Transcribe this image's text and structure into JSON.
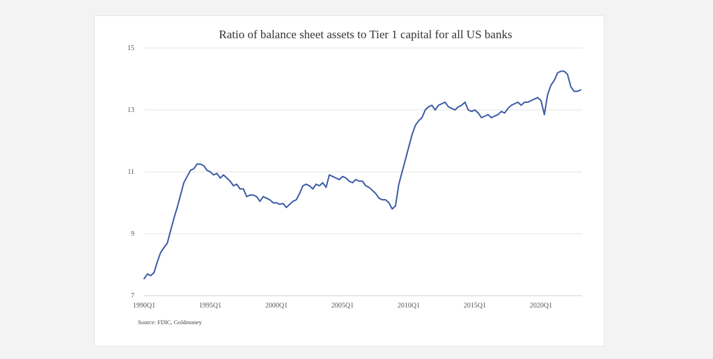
{
  "chart_data": {
    "type": "line",
    "title": "Ratio of balance sheet assets to Tier 1 capital for all US banks",
    "source": "Source: FDIC, Goldmoney",
    "ylim": [
      7,
      15
    ],
    "y_ticks": [
      "7",
      "9",
      "11",
      "13",
      "15"
    ],
    "x_ticks": [
      "1990Q1",
      "1995Q1",
      "2000Q1",
      "2005Q1",
      "2010Q1",
      "2015Q1",
      "2020Q1"
    ],
    "grid": "horizontal",
    "legend": "none",
    "series": [
      {
        "color": "#3b5ba5",
        "points": [
          [
            "1990Q1",
            7.55
          ],
          [
            "1990Q2",
            7.7
          ],
          [
            "1990Q3",
            7.65
          ],
          [
            "1990Q4",
            7.75
          ],
          [
            "1991Q1",
            8.1
          ],
          [
            "1991Q2",
            8.4
          ],
          [
            "1991Q3",
            8.55
          ],
          [
            "1991Q4",
            8.7
          ],
          [
            "1992Q1",
            9.1
          ],
          [
            "1992Q2",
            9.5
          ],
          [
            "1992Q3",
            9.85
          ],
          [
            "1992Q4",
            10.25
          ],
          [
            "1993Q1",
            10.65
          ],
          [
            "1993Q2",
            10.85
          ],
          [
            "1993Q3",
            11.05
          ],
          [
            "1993Q4",
            11.1
          ],
          [
            "1994Q1",
            11.25
          ],
          [
            "1994Q2",
            11.25
          ],
          [
            "1994Q3",
            11.2
          ],
          [
            "1994Q4",
            11.05
          ],
          [
            "1995Q1",
            11.0
          ],
          [
            "1995Q2",
            10.9
          ],
          [
            "1995Q3",
            10.95
          ],
          [
            "1995Q4",
            10.8
          ],
          [
            "1996Q1",
            10.9
          ],
          [
            "1996Q2",
            10.8
          ],
          [
            "1996Q3",
            10.7
          ],
          [
            "1996Q4",
            10.55
          ],
          [
            "1997Q1",
            10.6
          ],
          [
            "1997Q2",
            10.45
          ],
          [
            "1997Q3",
            10.45
          ],
          [
            "1997Q4",
            10.2
          ],
          [
            "1998Q1",
            10.25
          ],
          [
            "1998Q2",
            10.25
          ],
          [
            "1998Q3",
            10.2
          ],
          [
            "1998Q4",
            10.05
          ],
          [
            "1999Q1",
            10.2
          ],
          [
            "1999Q2",
            10.15
          ],
          [
            "1999Q3",
            10.1
          ],
          [
            "1999Q4",
            10.0
          ],
          [
            "2000Q1",
            10.0
          ],
          [
            "2000Q2",
            9.95
          ],
          [
            "2000Q3",
            9.98
          ],
          [
            "2000Q4",
            9.85
          ],
          [
            "2001Q1",
            9.95
          ],
          [
            "2001Q2",
            10.05
          ],
          [
            "2001Q3",
            10.1
          ],
          [
            "2001Q4",
            10.3
          ],
          [
            "2002Q1",
            10.55
          ],
          [
            "2002Q2",
            10.6
          ],
          [
            "2002Q3",
            10.55
          ],
          [
            "2002Q4",
            10.45
          ],
          [
            "2003Q1",
            10.6
          ],
          [
            "2003Q2",
            10.55
          ],
          [
            "2003Q3",
            10.65
          ],
          [
            "2003Q4",
            10.5
          ],
          [
            "2004Q1",
            10.9
          ],
          [
            "2004Q2",
            10.85
          ],
          [
            "2004Q3",
            10.8
          ],
          [
            "2004Q4",
            10.75
          ],
          [
            "2005Q1",
            10.85
          ],
          [
            "2005Q2",
            10.8
          ],
          [
            "2005Q3",
            10.7
          ],
          [
            "2005Q4",
            10.65
          ],
          [
            "2006Q1",
            10.75
          ],
          [
            "2006Q2",
            10.7
          ],
          [
            "2006Q3",
            10.7
          ],
          [
            "2006Q4",
            10.55
          ],
          [
            "2007Q1",
            10.5
          ],
          [
            "2007Q2",
            10.4
          ],
          [
            "2007Q3",
            10.3
          ],
          [
            "2007Q4",
            10.15
          ],
          [
            "2008Q1",
            10.1
          ],
          [
            "2008Q2",
            10.1
          ],
          [
            "2008Q3",
            10.0
          ],
          [
            "2008Q4",
            9.8
          ],
          [
            "2009Q1",
            9.9
          ],
          [
            "2009Q2",
            10.6
          ],
          [
            "2009Q3",
            11.0
          ],
          [
            "2009Q4",
            11.4
          ],
          [
            "2010Q1",
            11.8
          ],
          [
            "2010Q2",
            12.2
          ],
          [
            "2010Q3",
            12.5
          ],
          [
            "2010Q4",
            12.65
          ],
          [
            "2011Q1",
            12.75
          ],
          [
            "2011Q2",
            13.0
          ],
          [
            "2011Q3",
            13.1
          ],
          [
            "2011Q4",
            13.15
          ],
          [
            "2012Q1",
            13.0
          ],
          [
            "2012Q2",
            13.15
          ],
          [
            "2012Q3",
            13.2
          ],
          [
            "2012Q4",
            13.25
          ],
          [
            "2013Q1",
            13.1
          ],
          [
            "2013Q2",
            13.05
          ],
          [
            "2013Q3",
            13.0
          ],
          [
            "2013Q4",
            13.1
          ],
          [
            "2014Q1",
            13.15
          ],
          [
            "2014Q2",
            13.25
          ],
          [
            "2014Q3",
            13.0
          ],
          [
            "2014Q4",
            12.95
          ],
          [
            "2015Q1",
            13.0
          ],
          [
            "2015Q2",
            12.9
          ],
          [
            "2015Q3",
            12.75
          ],
          [
            "2015Q4",
            12.8
          ],
          [
            "2016Q1",
            12.85
          ],
          [
            "2016Q2",
            12.75
          ],
          [
            "2016Q3",
            12.8
          ],
          [
            "2016Q4",
            12.85
          ],
          [
            "2017Q1",
            12.95
          ],
          [
            "2017Q2",
            12.9
          ],
          [
            "2017Q3",
            13.05
          ],
          [
            "2017Q4",
            13.15
          ],
          [
            "2018Q1",
            13.2
          ],
          [
            "2018Q2",
            13.25
          ],
          [
            "2018Q3",
            13.15
          ],
          [
            "2018Q4",
            13.25
          ],
          [
            "2019Q1",
            13.25
          ],
          [
            "2019Q2",
            13.3
          ],
          [
            "2019Q3",
            13.35
          ],
          [
            "2019Q4",
            13.4
          ],
          [
            "2020Q1",
            13.3
          ],
          [
            "2020Q2",
            12.85
          ],
          [
            "2020Q3",
            13.5
          ],
          [
            "2020Q4",
            13.8
          ],
          [
            "2021Q1",
            13.95
          ],
          [
            "2021Q2",
            14.2
          ],
          [
            "2021Q3",
            14.25
          ],
          [
            "2021Q4",
            14.25
          ],
          [
            "2022Q1",
            14.15
          ],
          [
            "2022Q2",
            13.75
          ],
          [
            "2022Q3",
            13.6
          ],
          [
            "2022Q4",
            13.6
          ],
          [
            "2023Q1",
            13.65
          ]
        ]
      }
    ]
  }
}
